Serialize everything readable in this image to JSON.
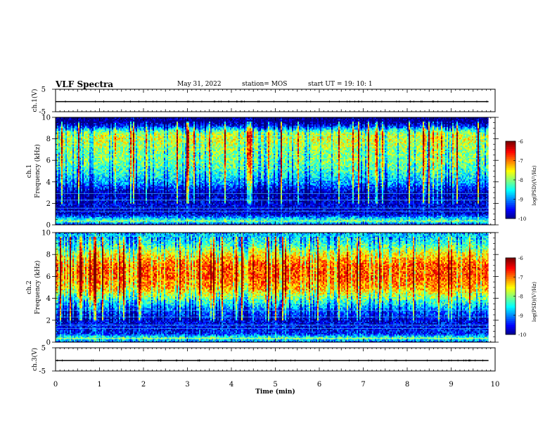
{
  "header": {
    "title": "VLF Spectra",
    "date": "May 31, 2022",
    "station": "station= MOS",
    "start": "start  UT =   19: 10: 1"
  },
  "chart_data": [
    {
      "type": "line",
      "panel": "ch1-voltage",
      "ylabel": "ch.1(V)",
      "ylim": [
        -5,
        5
      ],
      "yticks": [
        "5",
        "-5"
      ],
      "x": [
        0,
        9.85
      ],
      "values": [
        -0.5,
        -0.5
      ]
    },
    {
      "type": "heatmap",
      "panel": "ch1-spectrogram",
      "ylabel_line1": "ch.1",
      "ylabel_line2": "Frequency (kHz)",
      "ylim": [
        0,
        10
      ],
      "yticks": [
        "0",
        "2",
        "4",
        "6",
        "8",
        "10"
      ],
      "xlim": [
        0,
        10
      ],
      "data_xmax": 9.85,
      "colorbar": {
        "label": "log(PSD)(V²/Hz)",
        "ticks": [
          "-6",
          "-7",
          "-8",
          "-9",
          "-10"
        ],
        "range": [
          -10,
          -6
        ]
      },
      "freq_profile": [
        {
          "f": 0.0,
          "v": -9.6
        },
        {
          "f": 0.35,
          "v": -8.1
        },
        {
          "f": 0.6,
          "v": -8.6
        },
        {
          "f": 1.0,
          "v": -9.7
        },
        {
          "f": 2.0,
          "v": -9.6
        },
        {
          "f": 3.0,
          "v": -9.7
        },
        {
          "f": 4.0,
          "v": -8.8
        },
        {
          "f": 5.0,
          "v": -8.3
        },
        {
          "f": 6.0,
          "v": -8.0
        },
        {
          "f": 7.0,
          "v": -7.9
        },
        {
          "f": 8.0,
          "v": -7.6
        },
        {
          "f": 8.6,
          "v": -7.8
        },
        {
          "f": 9.2,
          "v": -9.3
        },
        {
          "f": 9.6,
          "v": -10.0
        },
        {
          "f": 10.0,
          "v": -10.0
        }
      ]
    },
    {
      "type": "heatmap",
      "panel": "ch2-spectrogram",
      "ylabel_line1": "ch.2",
      "ylabel_line2": "Frequency (kHz)",
      "ylim": [
        0,
        10
      ],
      "yticks": [
        "0",
        "2",
        "4",
        "6",
        "8",
        "10"
      ],
      "xlim": [
        0,
        10
      ],
      "data_xmax": 9.85,
      "colorbar": {
        "label": "log(PSD)(V²/Hz)",
        "ticks": [
          "-6",
          "-7",
          "-8",
          "-9",
          "-10"
        ],
        "range": [
          -10,
          -6
        ]
      },
      "freq_profile": [
        {
          "f": 0.0,
          "v": -9.2
        },
        {
          "f": 0.4,
          "v": -8.2
        },
        {
          "f": 0.8,
          "v": -9.4
        },
        {
          "f": 2.0,
          "v": -9.6
        },
        {
          "f": 3.0,
          "v": -9.0
        },
        {
          "f": 4.0,
          "v": -8.0
        },
        {
          "f": 5.0,
          "v": -7.1
        },
        {
          "f": 6.0,
          "v": -6.8
        },
        {
          "f": 7.0,
          "v": -6.8
        },
        {
          "f": 8.0,
          "v": -7.4
        },
        {
          "f": 9.0,
          "v": -8.3
        },
        {
          "f": 10.0,
          "v": -8.8
        }
      ]
    },
    {
      "type": "line",
      "panel": "ch3-voltage",
      "ylabel": "ch.3(V)",
      "ylim": [
        -5,
        5
      ],
      "yticks": [
        "5",
        "-5"
      ],
      "x": [
        0,
        9.85
      ],
      "values": [
        -0.5,
        -0.5
      ]
    }
  ],
  "x_axis": {
    "label": "Time (min)",
    "range": [
      0,
      10
    ],
    "ticks": [
      "0",
      "1",
      "2",
      "3",
      "4",
      "5",
      "6",
      "7",
      "8",
      "9",
      "10"
    ]
  }
}
